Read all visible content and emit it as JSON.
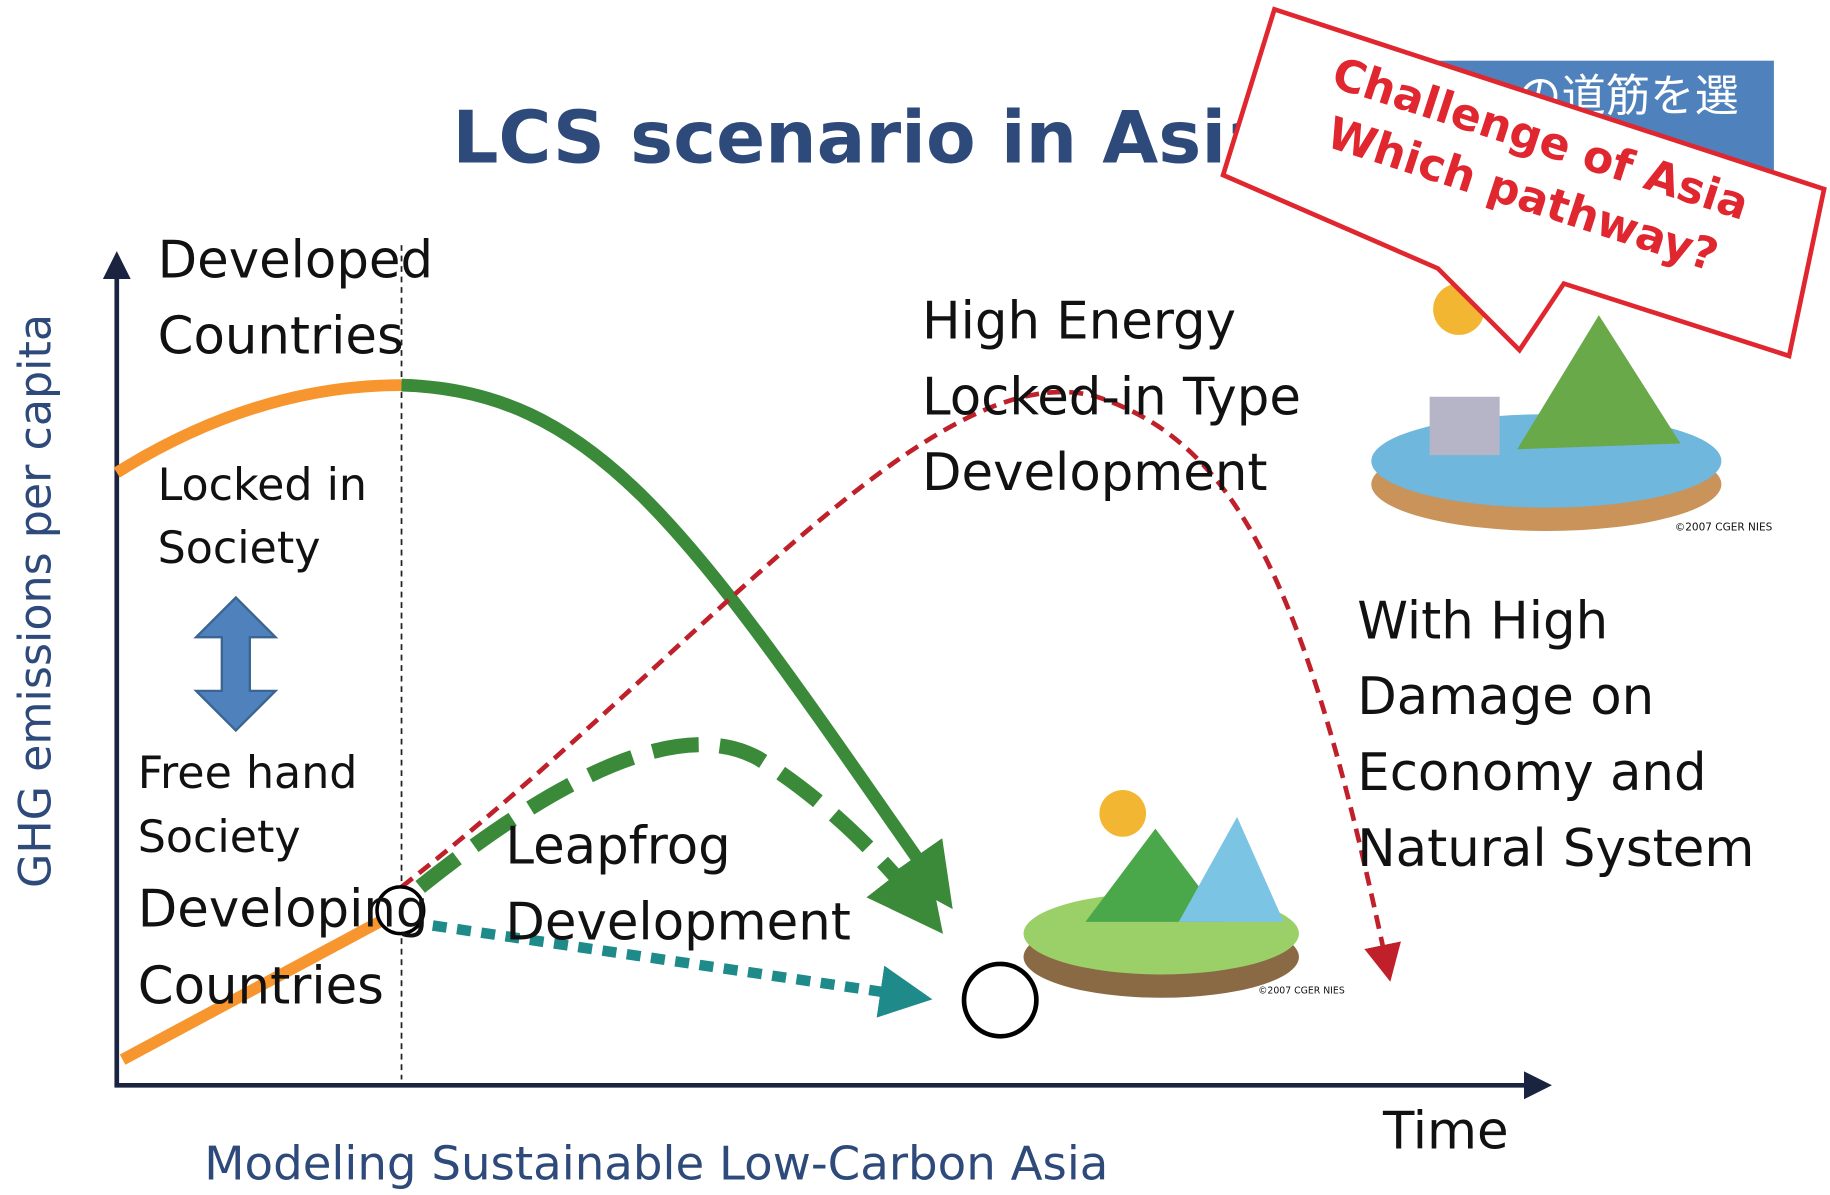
{
  "title": "LCS scenario in Asia",
  "footer": "Modeling Sustainable Low-Carbon Asia",
  "banner": "の道筋を選",
  "callout": [
    "Challenge of Asia",
    "Which pathway?"
  ],
  "axes": {
    "y_label": "GHG emissions per capita",
    "x_label": "Time"
  },
  "labels": {
    "developed": [
      "Developed",
      "Countries"
    ],
    "locked_in": [
      "Locked in",
      "Society"
    ],
    "free_hand": [
      "Free hand",
      "Society"
    ],
    "developing": [
      "Developing",
      "Countries"
    ],
    "leapfrog": [
      "Leapfrog",
      "Development"
    ],
    "high_energy": [
      "High Energy",
      "Locked-in Type",
      "Development"
    ],
    "damage": [
      "With High",
      "Damage on",
      "Economy and",
      "Natural System"
    ]
  },
  "credits": [
    "©2007 CGER NIES",
    "©2007 CGER NIES"
  ]
}
